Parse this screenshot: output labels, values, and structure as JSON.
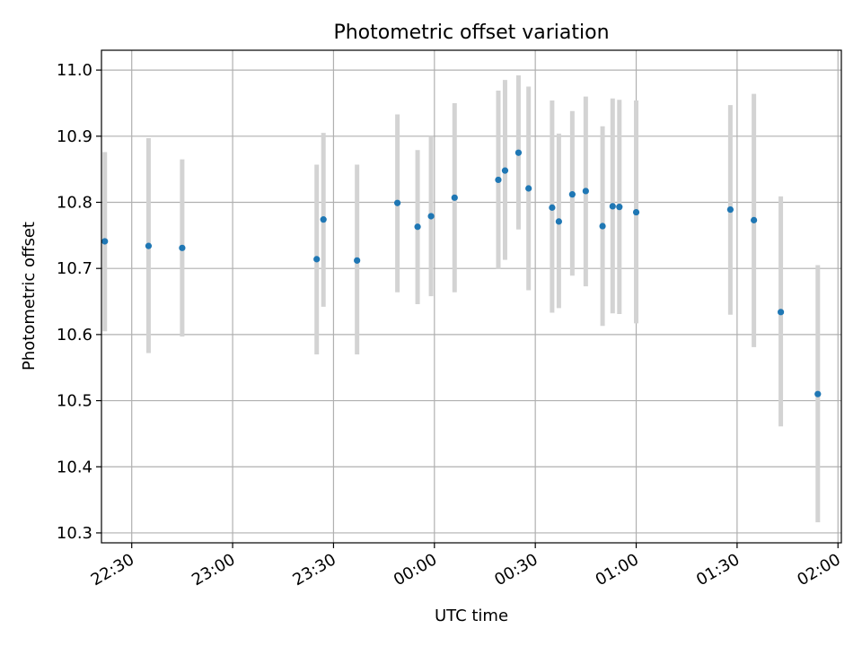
{
  "chart_data": {
    "type": "scatter",
    "title": "Photometric offset variation",
    "xlabel": "UTC time",
    "ylabel": "Photometric offset",
    "x_ticks": [
      "22:30",
      "23:00",
      "23:30",
      "00:00",
      "00:30",
      "01:00",
      "01:30",
      "02:00"
    ],
    "y_ticks": [
      "10.3",
      "10.4",
      "10.5",
      "10.6",
      "10.7",
      "10.8",
      "10.9",
      "11.0"
    ],
    "ylim": [
      10.285,
      11.03
    ],
    "xlim": [
      "22:21",
      "02:01"
    ],
    "grid": true,
    "colors": {
      "point": "#1f77b4",
      "errorbar": "#d3d3d3"
    },
    "series": [
      {
        "points": [
          {
            "x": "22:22",
            "y": 10.741,
            "lo": 10.605,
            "hi": 10.876
          },
          {
            "x": "22:35",
            "y": 10.734,
            "lo": 10.572,
            "hi": 10.897
          },
          {
            "x": "22:45",
            "y": 10.731,
            "lo": 10.597,
            "hi": 10.865
          },
          {
            "x": "23:25",
            "y": 10.714,
            "lo": 10.57,
            "hi": 10.857
          },
          {
            "x": "23:27",
            "y": 10.774,
            "lo": 10.642,
            "hi": 10.905
          },
          {
            "x": "23:37",
            "y": 10.712,
            "lo": 10.57,
            "hi": 10.857
          },
          {
            "x": "23:49",
            "y": 10.799,
            "lo": 10.664,
            "hi": 10.933
          },
          {
            "x": "23:55",
            "y": 10.763,
            "lo": 10.646,
            "hi": 10.879
          },
          {
            "x": "23:59",
            "y": 10.779,
            "lo": 10.658,
            "hi": 10.9
          },
          {
            "x": "00:06",
            "y": 10.807,
            "lo": 10.664,
            "hi": 10.95
          },
          {
            "x": "00:19",
            "y": 10.834,
            "lo": 10.699,
            "hi": 10.969
          },
          {
            "x": "00:21",
            "y": 10.848,
            "lo": 10.713,
            "hi": 10.985
          },
          {
            "x": "00:25",
            "y": 10.875,
            "lo": 10.759,
            "hi": 10.992
          },
          {
            "x": "00:28",
            "y": 10.821,
            "lo": 10.667,
            "hi": 10.975
          },
          {
            "x": "00:35",
            "y": 10.792,
            "lo": 10.633,
            "hi": 10.954
          },
          {
            "x": "00:37",
            "y": 10.771,
            "lo": 10.64,
            "hi": 10.904
          },
          {
            "x": "00:41",
            "y": 10.812,
            "lo": 10.689,
            "hi": 10.938
          },
          {
            "x": "00:45",
            "y": 10.817,
            "lo": 10.673,
            "hi": 10.96
          },
          {
            "x": "00:50",
            "y": 10.764,
            "lo": 10.613,
            "hi": 10.915
          },
          {
            "x": "00:53",
            "y": 10.794,
            "lo": 10.632,
            "hi": 10.957
          },
          {
            "x": "00:55",
            "y": 10.793,
            "lo": 10.631,
            "hi": 10.955
          },
          {
            "x": "01:00",
            "y": 10.785,
            "lo": 10.617,
            "hi": 10.954
          },
          {
            "x": "01:28",
            "y": 10.789,
            "lo": 10.63,
            "hi": 10.947
          },
          {
            "x": "01:35",
            "y": 10.773,
            "lo": 10.581,
            "hi": 10.964
          },
          {
            "x": "01:43",
            "y": 10.634,
            "lo": 10.461,
            "hi": 10.809
          },
          {
            "x": "01:54",
            "y": 10.51,
            "lo": 10.316,
            "hi": 10.705
          }
        ]
      }
    ]
  }
}
